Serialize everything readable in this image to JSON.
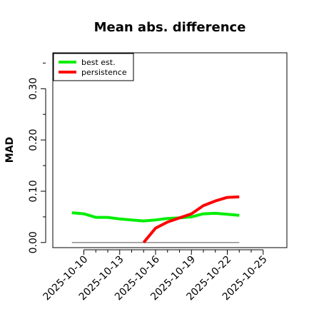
{
  "chart_data": {
    "type": "line",
    "title": "Mean abs. difference",
    "xlabel": "",
    "ylabel": "MAD",
    "xlim": [
      "2025-10-08",
      "2025-10-24"
    ],
    "ylim": [
      -0.01,
      0.37
    ],
    "x_ticks": [
      "2025-10-10",
      "2025-10-13",
      "2025-10-16",
      "2025-10-19",
      "2025-10-22",
      "2025-10-25"
    ],
    "y_ticks": [
      0.0,
      0.1,
      0.2,
      0.3
    ],
    "y_tick_labels": [
      "0.00",
      "0.10",
      "0.20",
      "0.30"
    ],
    "minor_y_ticks": [
      0.05,
      0.15,
      0.25,
      0.35
    ],
    "grid": false,
    "legend_position": "top-left",
    "reference_line": {
      "y": 0.0,
      "x_range": [
        "2025-10-09",
        "2025-10-23"
      ],
      "color": "#555555"
    },
    "series": [
      {
        "name": "best est.",
        "color": "#00ee00",
        "points": [
          [
            "2025-10-09",
            0.058
          ],
          [
            "2025-10-10",
            0.056
          ],
          [
            "2025-10-11",
            0.049
          ],
          [
            "2025-10-12",
            0.049
          ],
          [
            "2025-10-13",
            0.046
          ],
          [
            "2025-10-14",
            0.044
          ],
          [
            "2025-10-15",
            0.042
          ],
          [
            "2025-10-16",
            0.044
          ],
          [
            "2025-10-17",
            0.047
          ],
          [
            "2025-10-18",
            0.048
          ],
          [
            "2025-10-19",
            0.05
          ],
          [
            "2025-10-20",
            0.056
          ],
          [
            "2025-10-21",
            0.057
          ],
          [
            "2025-10-22",
            0.055
          ],
          [
            "2025-10-23",
            0.053
          ]
        ]
      },
      {
        "name": "persistence",
        "color": "#ff0000",
        "points": [
          [
            "2025-10-15",
            0.0
          ],
          [
            "2025-10-16",
            0.028
          ],
          [
            "2025-10-17",
            0.04
          ],
          [
            "2025-10-18",
            0.048
          ],
          [
            "2025-10-19",
            0.056
          ],
          [
            "2025-10-20",
            0.072
          ],
          [
            "2025-10-21",
            0.081
          ],
          [
            "2025-10-22",
            0.088
          ],
          [
            "2025-10-23",
            0.089
          ]
        ]
      }
    ]
  }
}
